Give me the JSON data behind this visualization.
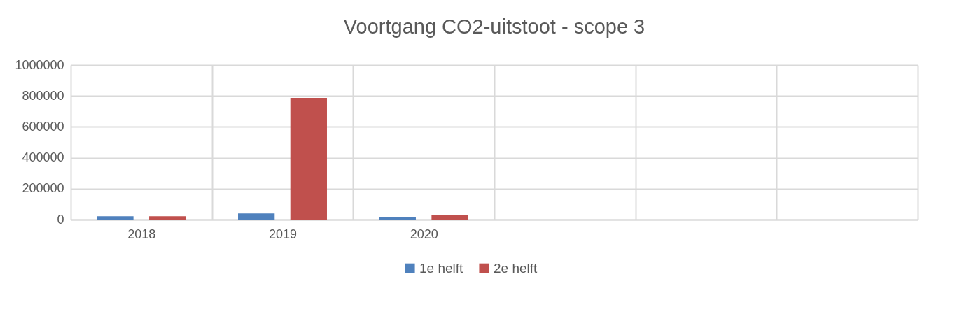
{
  "chart_data": {
    "type": "bar",
    "title": "Voortgang CO2-uitstoot - scope 3",
    "categories": [
      "2018",
      "2019",
      "2020",
      null,
      null,
      null
    ],
    "series": [
      {
        "name": "1e helft",
        "color": "#4f81bd",
        "values": [
          22000,
          40000,
          18000,
          null,
          null,
          null
        ]
      },
      {
        "name": "2e helft",
        "color": "#c0504d",
        "values": [
          22000,
          787000,
          32000,
          null,
          null,
          null
        ]
      }
    ],
    "ylim": [
      0,
      1000000
    ],
    "yticks": [
      0,
      200000,
      400000,
      600000,
      800000,
      1000000
    ],
    "grid": true,
    "legend": "bottom"
  }
}
